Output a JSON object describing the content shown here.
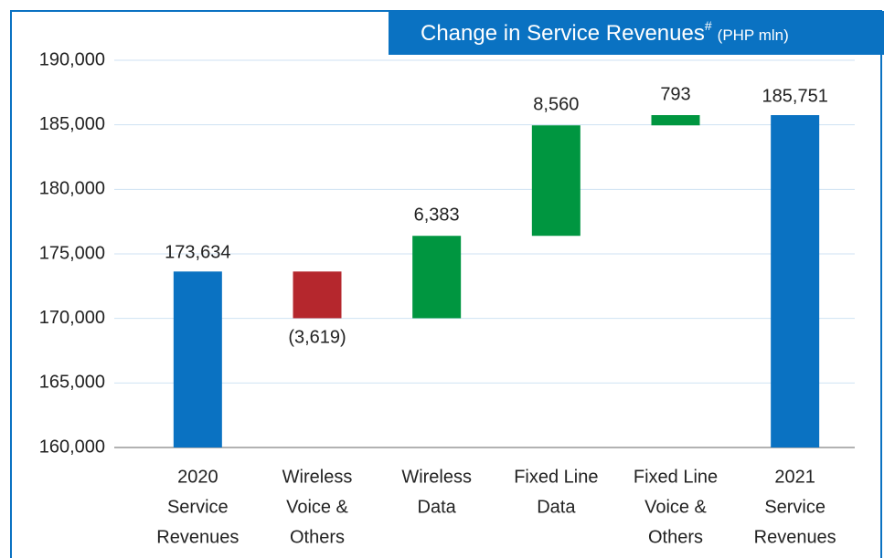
{
  "chart_data": {
    "type": "waterfall",
    "title": "Change in Service Revenues",
    "title_mark": "#",
    "unit": "(PHP mln)",
    "categories": [
      [
        "2020",
        "Service",
        "Revenues"
      ],
      [
        "Wireless",
        "Voice &",
        "Others"
      ],
      [
        "Wireless",
        "Data"
      ],
      [
        "Fixed Line",
        "Data"
      ],
      [
        "Fixed Line",
        "Voice &",
        "Others"
      ],
      [
        "2021",
        "Service",
        "Revenues"
      ]
    ],
    "kinds": [
      "total",
      "delta",
      "delta",
      "delta",
      "delta",
      "total"
    ],
    "values": [
      173634,
      -3619,
      6383,
      8560,
      793,
      185751
    ],
    "value_labels": [
      "173,634",
      "(3,619)",
      "6,383",
      "8,560",
      "793",
      "185,751"
    ],
    "colors": {
      "total": "#0a72c2",
      "increase": "#009640",
      "decrease": "#b5272d"
    },
    "ylim": [
      160000,
      190000
    ],
    "yticks": [
      {
        "value": 160000,
        "label": "160,000"
      },
      {
        "value": 165000,
        "label": "165,000"
      },
      {
        "value": 170000,
        "label": "170,000"
      },
      {
        "value": 175000,
        "label": "175,000"
      },
      {
        "value": 180000,
        "label": "180,000"
      },
      {
        "value": 185000,
        "label": "185,000"
      },
      {
        "value": 190000,
        "label": "190,000"
      }
    ],
    "grid": true
  }
}
